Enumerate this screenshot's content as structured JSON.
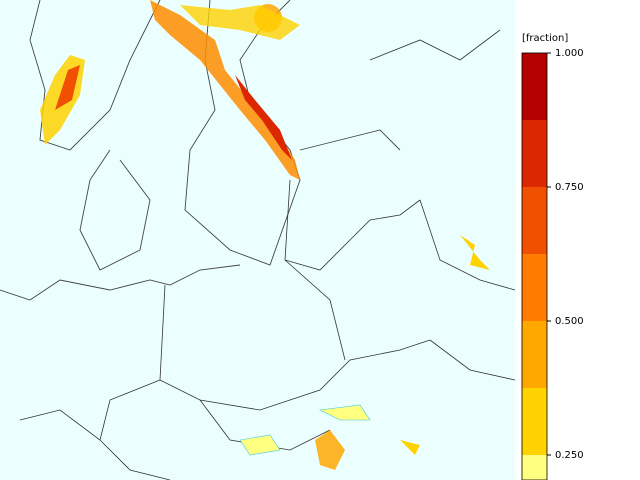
{
  "legend": {
    "title": "[fraction]",
    "range": [
      0.2,
      1
    ],
    "ticks": [
      {
        "value": 1,
        "label": "1.000"
      },
      {
        "value": 0.75,
        "label": "0.750"
      },
      {
        "value": 0.5,
        "label": "0.500"
      },
      {
        "value": 0.25,
        "label": "0.250"
      }
    ],
    "colors": [
      "#b40000",
      "#dc2800",
      "#f05000",
      "#ff7c00",
      "#ffa800",
      "#ffd200",
      "#ffff80"
    ]
  }
}
